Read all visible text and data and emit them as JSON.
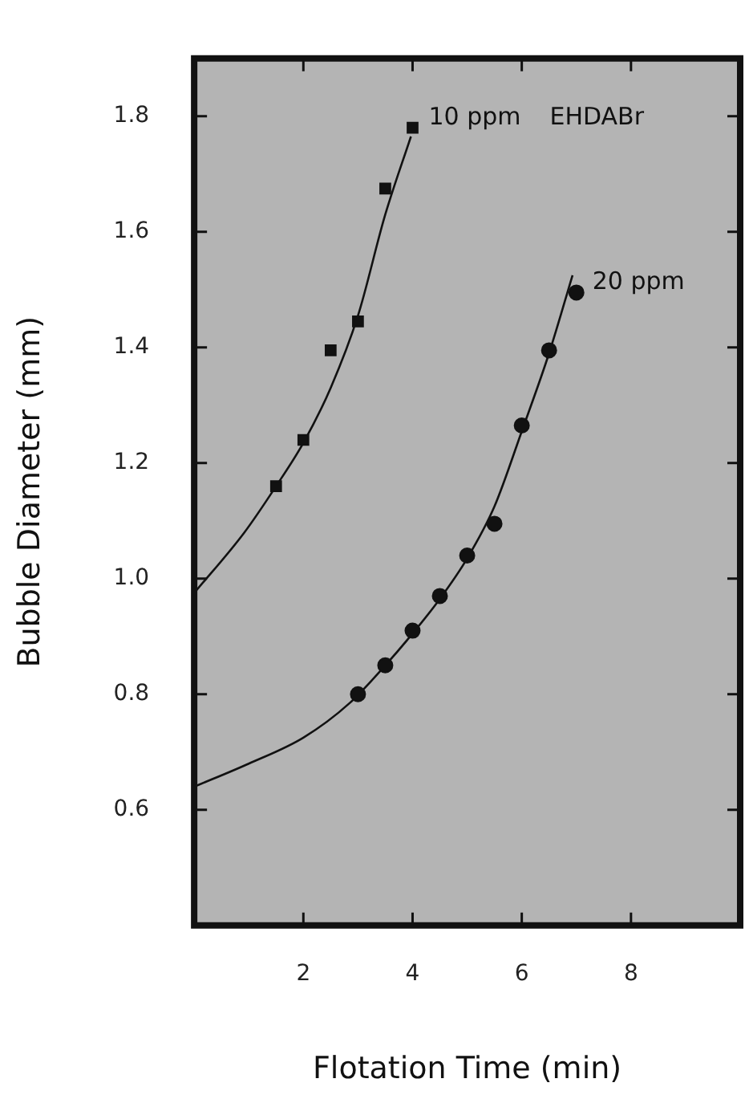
{
  "chart_data": {
    "type": "scatter",
    "xlabel": "Flotation Time (min)",
    "ylabel": "Bubble Diameter (mm)",
    "xlim": [
      0,
      10
    ],
    "ylim": [
      0.4,
      1.9
    ],
    "xticks": [
      2,
      4,
      6,
      8
    ],
    "yticks": [
      0.6,
      0.8,
      {
        "value": 1,
        "label": "1.0"
      },
      1.2,
      1.4,
      1.6,
      1.8
    ],
    "grid": false,
    "legend": false,
    "annotations": [
      "EHDABr"
    ],
    "series": [
      {
        "name": "10 ppm",
        "color": "#111111",
        "marker": "square",
        "x": [
          1.5,
          2,
          2.5,
          3,
          3.5,
          4
        ],
        "values": [
          1.16,
          1.24,
          1.395,
          1.445,
          1.675,
          1.78
        ]
      },
      {
        "name": "20 ppm",
        "color": "#111111",
        "marker": "circle",
        "x": [
          3,
          3.5,
          4,
          4.5,
          5,
          5.5,
          6,
          6.5,
          7
        ],
        "values": [
          0.8,
          0.85,
          0.91,
          0.97,
          1.04,
          1.095,
          1.265,
          1.395,
          1.495
        ]
      },
      {
        "type": "line",
        "color": "#111111",
        "marker": "none",
        "x": [
          0,
          0.92,
          1.5,
          2,
          2.5,
          3,
          3.5,
          3.97
        ],
        "values": [
          0.975,
          1.08,
          1.16,
          1.235,
          1.33,
          1.455,
          1.63,
          1.765
        ]
      },
      {
        "type": "line",
        "color": "#111111",
        "marker": "none",
        "x": [
          0,
          1,
          2,
          2.85,
          3.5,
          4,
          4.5,
          5,
          5.5,
          6,
          6.5,
          6.93
        ],
        "values": [
          0.64,
          0.68,
          0.725,
          0.785,
          0.85,
          0.905,
          0.965,
          1.035,
          1.125,
          1.255,
          1.39,
          1.525
        ]
      }
    ]
  }
}
